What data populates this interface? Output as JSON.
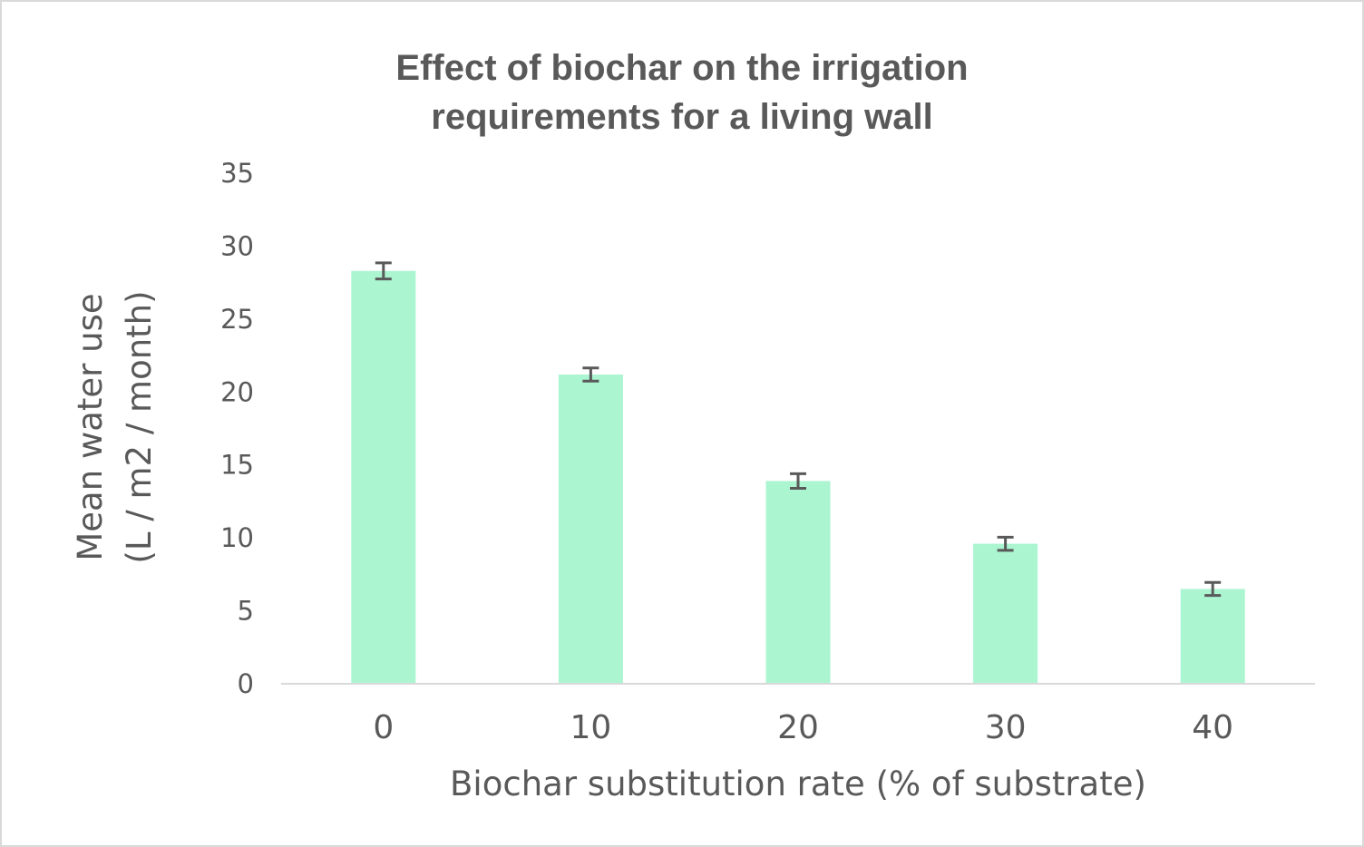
{
  "chart_data": {
    "type": "bar",
    "title_lines": [
      "Effect of biochar on the irrigation",
      "requirements for a living wall"
    ],
    "xlabel": "Biochar substitution rate (% of substrate)",
    "ylabel_lines": [
      "Mean water use",
      "(L / m2 / month)"
    ],
    "categories": [
      "0",
      "10",
      "20",
      "30",
      "40"
    ],
    "values": [
      28.3,
      21.2,
      13.9,
      9.6,
      6.5
    ],
    "errors": [
      0.55,
      0.45,
      0.5,
      0.45,
      0.45
    ],
    "ylim": [
      0,
      35
    ],
    "yticks": [
      0,
      5,
      10,
      15,
      20,
      25,
      30,
      35
    ],
    "grid": false,
    "legend": "none",
    "colors": {
      "bar": "#abf5d1",
      "error_bar": "#595959",
      "axis": "#d9d9d9",
      "text": "#595959"
    }
  }
}
